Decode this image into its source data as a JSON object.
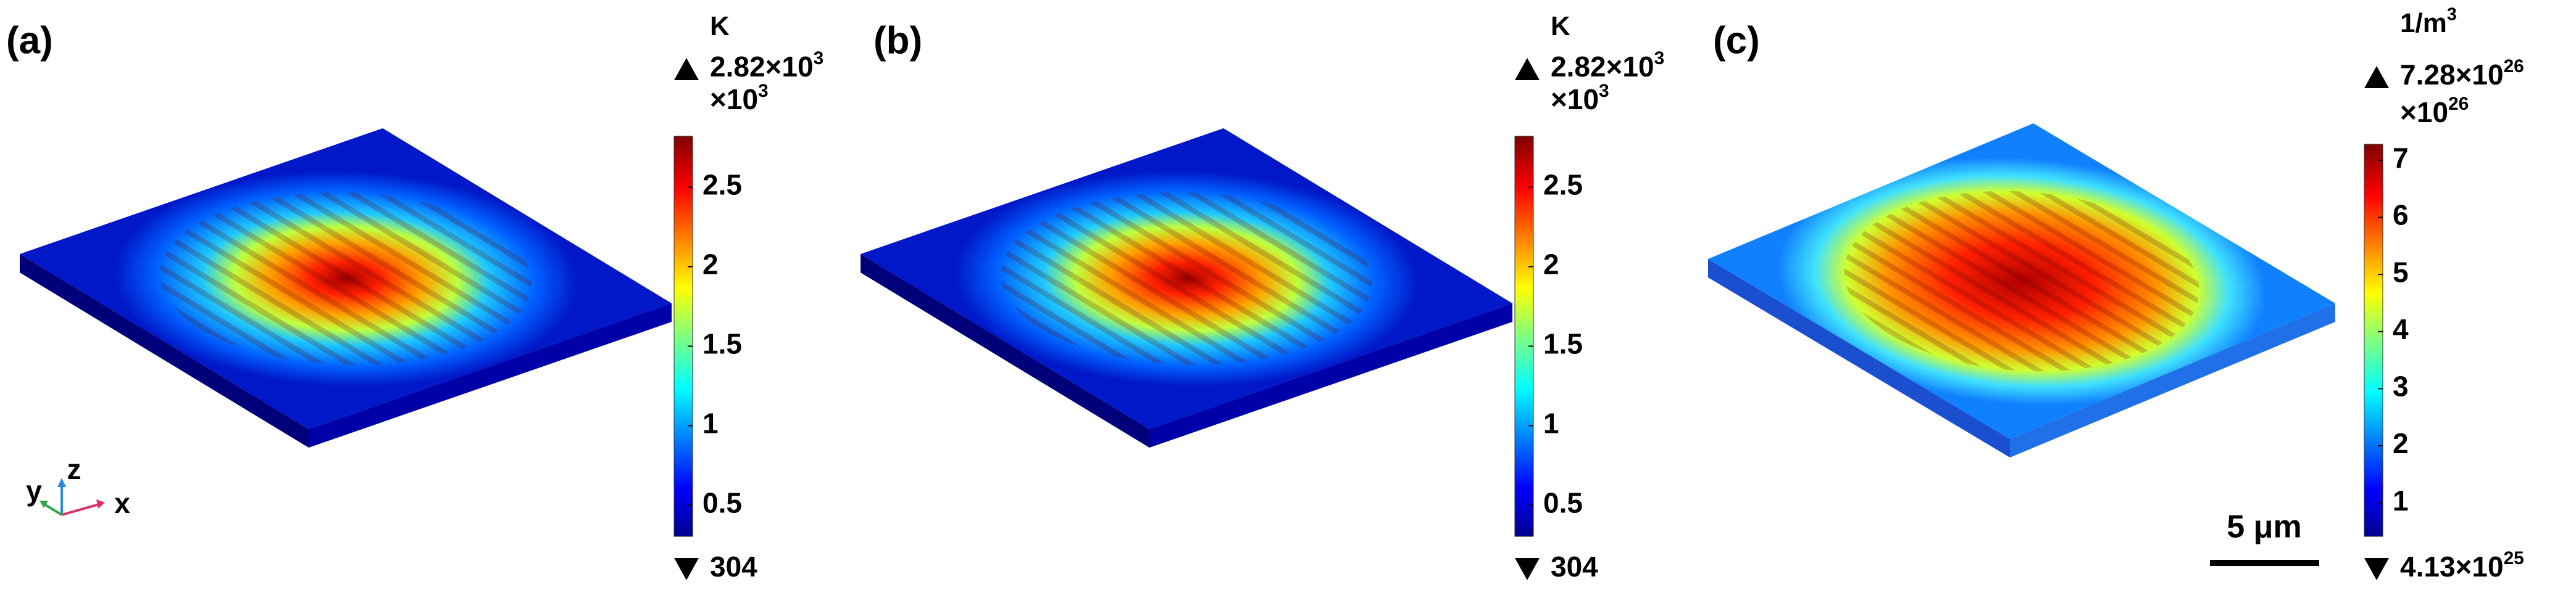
{
  "panels": [
    {
      "label": "(a)",
      "unit": {
        "base": "K"
      },
      "max": {
        "base": "2.82×10",
        "exp": "3"
      },
      "multiplier": {
        "base": "×10",
        "exp": "3"
      },
      "min": {
        "base": "304"
      },
      "ticks": [
        0.5,
        1,
        1.5,
        2,
        2.5
      ],
      "clim": [
        0.304,
        2.82
      ]
    },
    {
      "label": "(b)",
      "unit": {
        "base": "K"
      },
      "max": {
        "base": "2.82×10",
        "exp": "3"
      },
      "multiplier": {
        "base": "×10",
        "exp": "3"
      },
      "min": {
        "base": "304"
      },
      "ticks": [
        0.5,
        1,
        1.5,
        2,
        2.5
      ],
      "clim": [
        0.304,
        2.82
      ]
    },
    {
      "label": "(c)",
      "unit": {
        "base": "1/m",
        "exp": "3"
      },
      "max": {
        "base": "7.28×10",
        "exp": "26"
      },
      "multiplier": {
        "base": "×10",
        "exp": "26"
      },
      "min": {
        "base": "4.13×10",
        "exp": "25"
      },
      "ticks": [
        1,
        2,
        3,
        4,
        5,
        6,
        7
      ],
      "clim": [
        0.413,
        7.28
      ]
    }
  ],
  "axes": {
    "y": "y",
    "z": "z",
    "x": "x"
  },
  "scale_bar": "5 μm"
}
